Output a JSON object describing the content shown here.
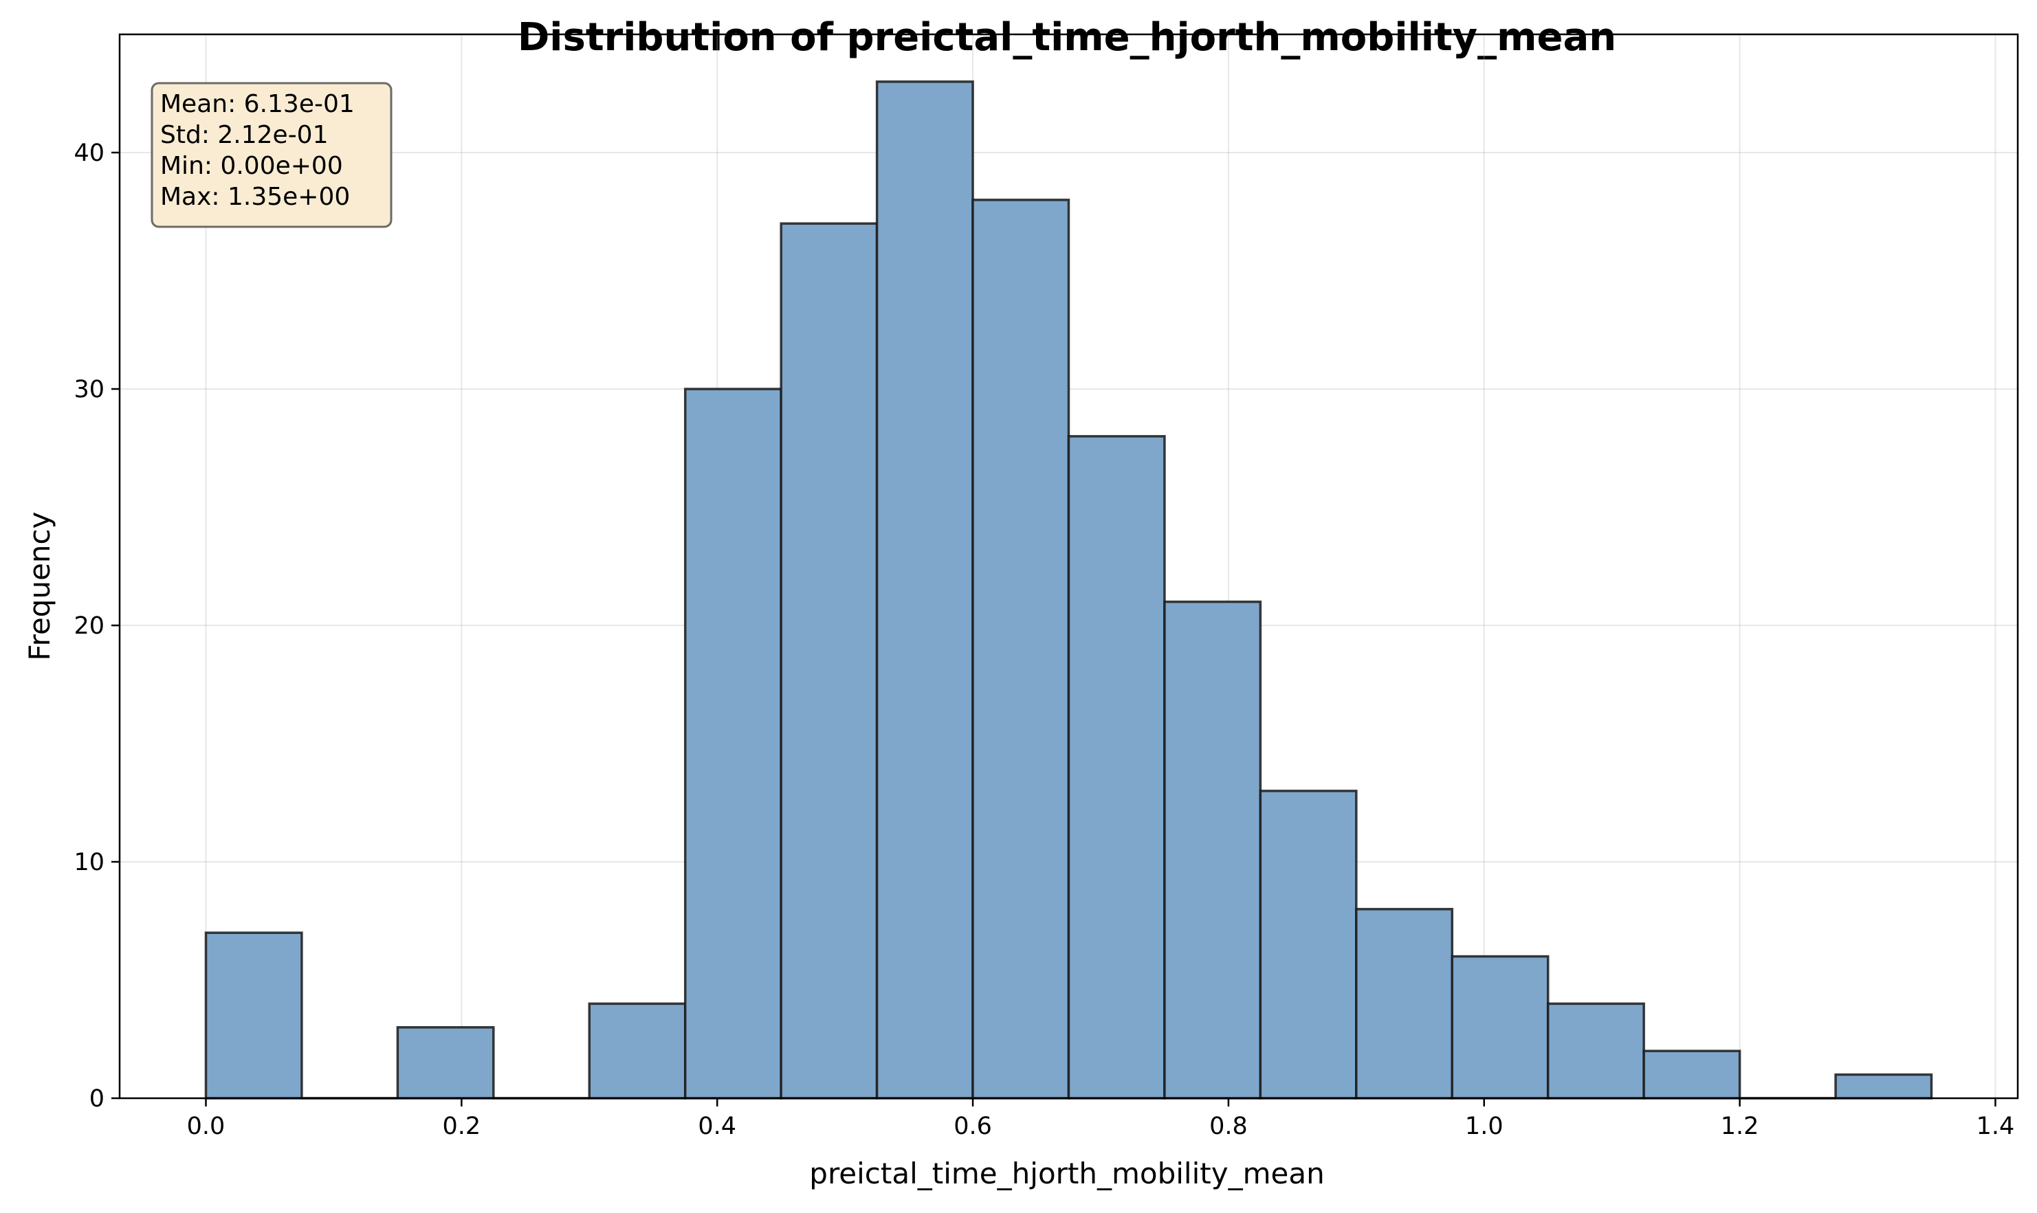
{
  "chart_data": {
    "type": "bar",
    "title": "Distribution of preictal_time_hjorth_mobility_mean",
    "xlabel": "preictal_time_hjorth_mobility_mean",
    "ylabel": "Frequency",
    "xlim": [
      -0.0675,
      1.4175
    ],
    "ylim": [
      0,
      45
    ],
    "grid": true,
    "bar_color": "#7ea7cb",
    "edge_color": "#1a1a1a",
    "x_ticks": [
      {
        "value": 0.0,
        "label": "0.0"
      },
      {
        "value": 0.2,
        "label": "0.2"
      },
      {
        "value": 0.4,
        "label": "0.4"
      },
      {
        "value": 0.6,
        "label": "0.6"
      },
      {
        "value": 0.8,
        "label": "0.8"
      },
      {
        "value": 1.0,
        "label": "1.0"
      },
      {
        "value": 1.2,
        "label": "1.2"
      },
      {
        "value": 1.4,
        "label": "1.4"
      }
    ],
    "y_ticks": [
      {
        "value": 0,
        "label": "0"
      },
      {
        "value": 10,
        "label": "10"
      },
      {
        "value": 20,
        "label": "20"
      },
      {
        "value": 30,
        "label": "30"
      },
      {
        "value": 40,
        "label": "40"
      }
    ],
    "bins": [
      {
        "x0": 0.0,
        "x1": 0.075,
        "count": 7
      },
      {
        "x0": 0.075,
        "x1": 0.15,
        "count": 0
      },
      {
        "x0": 0.15,
        "x1": 0.225,
        "count": 3
      },
      {
        "x0": 0.225,
        "x1": 0.3,
        "count": 0
      },
      {
        "x0": 0.3,
        "x1": 0.375,
        "count": 4
      },
      {
        "x0": 0.375,
        "x1": 0.45,
        "count": 30
      },
      {
        "x0": 0.45,
        "x1": 0.525,
        "count": 37
      },
      {
        "x0": 0.525,
        "x1": 0.6,
        "count": 43
      },
      {
        "x0": 0.6,
        "x1": 0.675,
        "count": 38
      },
      {
        "x0": 0.675,
        "x1": 0.75,
        "count": 28
      },
      {
        "x0": 0.75,
        "x1": 0.825,
        "count": 21
      },
      {
        "x0": 0.825,
        "x1": 0.9,
        "count": 13
      },
      {
        "x0": 0.9,
        "x1": 0.975,
        "count": 8
      },
      {
        "x0": 0.975,
        "x1": 1.05,
        "count": 6
      },
      {
        "x0": 1.05,
        "x1": 1.125,
        "count": 4
      },
      {
        "x0": 1.125,
        "x1": 1.2,
        "count": 2
      },
      {
        "x0": 1.2,
        "x1": 1.275,
        "count": 0
      },
      {
        "x0": 1.275,
        "x1": 1.35,
        "count": 1
      }
    ],
    "annotation": {
      "lines": [
        "Mean: 6.13e-01",
        "Std: 2.12e-01",
        "Min: 0.00e+00",
        "Max: 1.35e+00"
      ],
      "placement": "top-left",
      "background": "#f9ecd3",
      "border": "#6d6a66"
    }
  }
}
